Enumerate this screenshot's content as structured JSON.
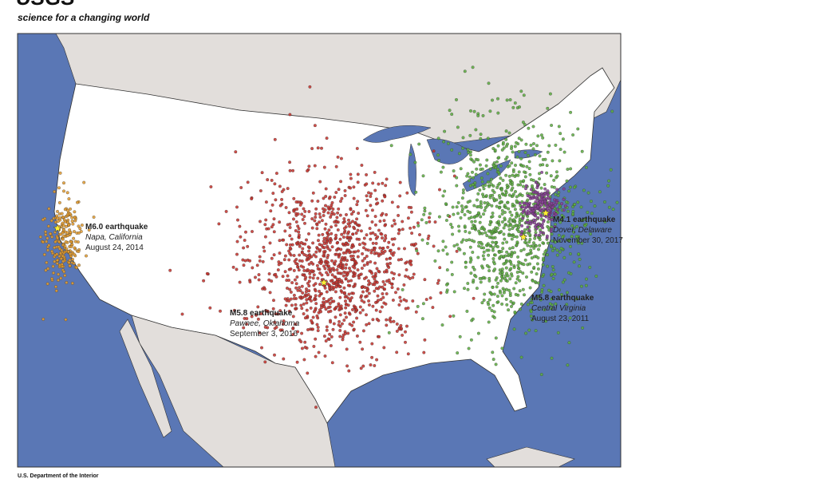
{
  "header": {
    "logo": "USGS",
    "tagline": "science for a changing world"
  },
  "map": {
    "events": [
      {
        "magnitude": "M6.0 earthquake",
        "place": "Napa, California",
        "date": "August 24, 2014"
      },
      {
        "magnitude": "M5.8 earthquake",
        "place": "Pawnee, Oklahoma",
        "date": "September 3, 2016"
      },
      {
        "magnitude": "M4.1 earthquake",
        "place": "Dover, Delaware",
        "date": "November 30, 2017"
      },
      {
        "magnitude": "M5.8 earthquake",
        "place": "Central Virginia",
        "date": "August 23, 2011"
      }
    ]
  },
  "footer": {
    "agency": "U.S. Department of the Interior"
  }
}
